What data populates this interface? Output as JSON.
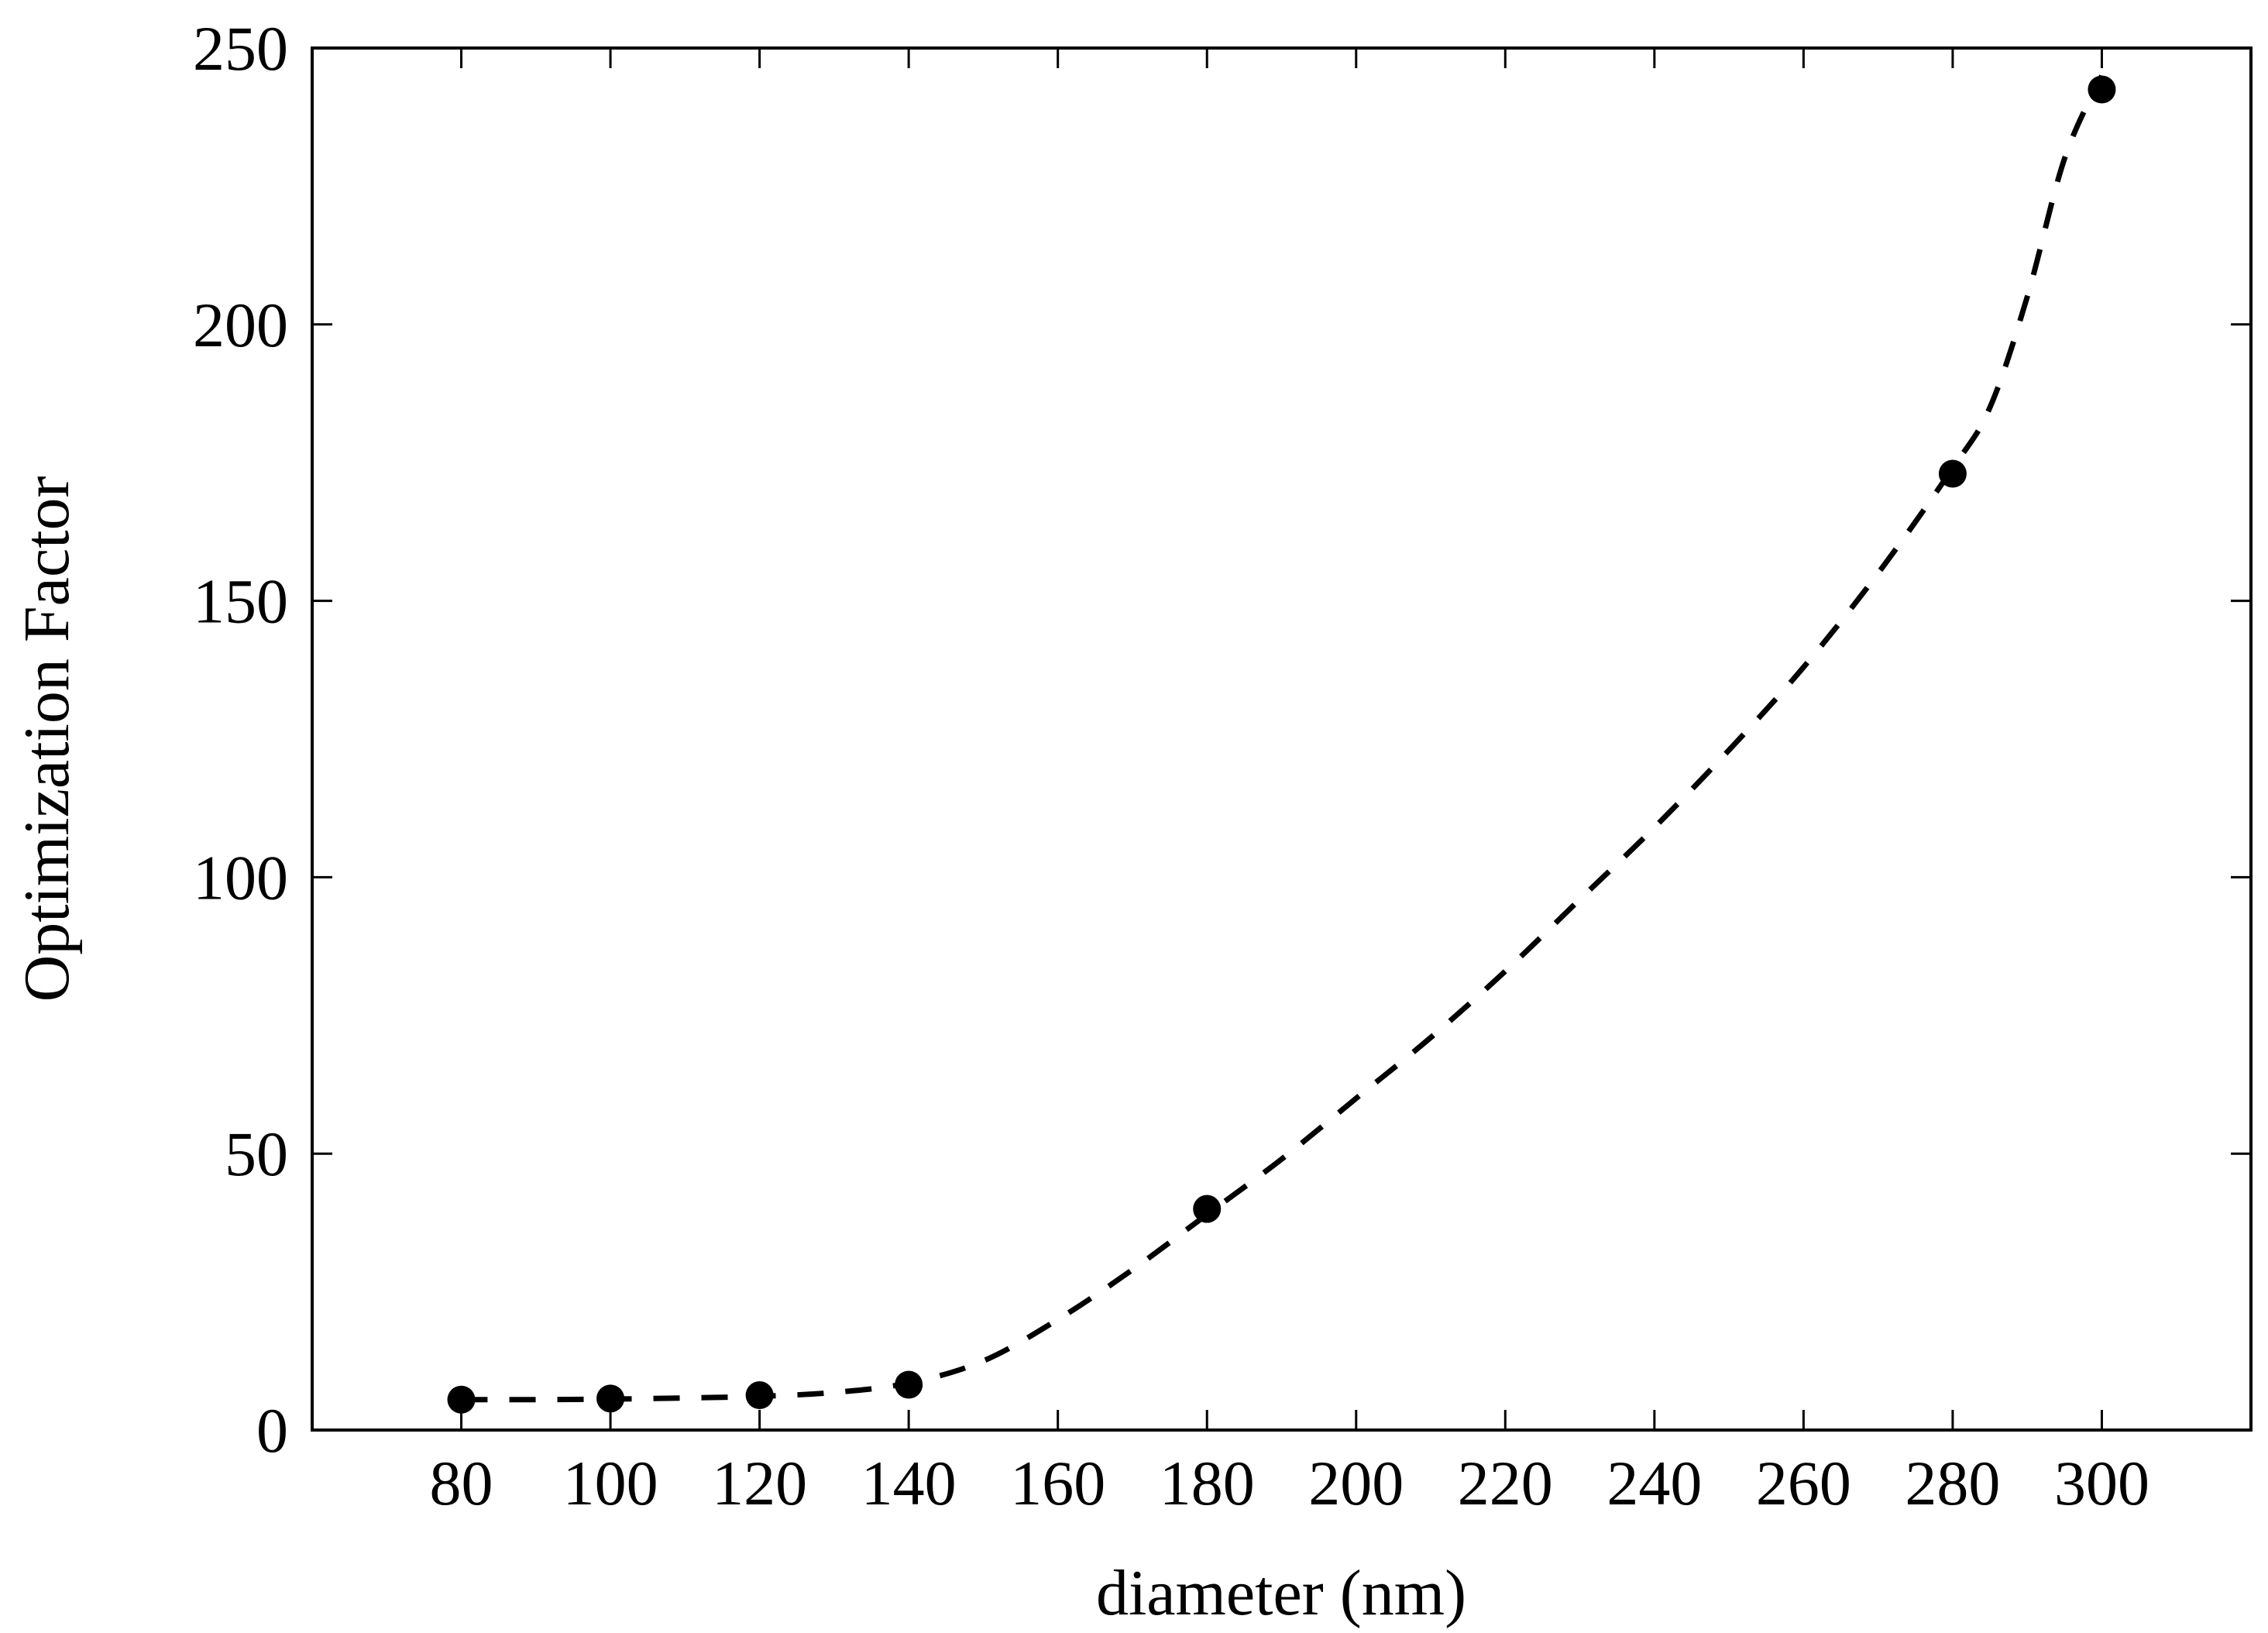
{
  "chart_data": {
    "type": "scatter",
    "title": "",
    "xlabel": "diameter (nm)",
    "ylabel": "Optimization Factor",
    "xlim": [
      60,
      320
    ],
    "ylim": [
      0,
      250
    ],
    "x_ticks": [
      80,
      100,
      120,
      140,
      160,
      180,
      200,
      220,
      240,
      260,
      280,
      300
    ],
    "y_ticks": [
      0,
      50,
      100,
      150,
      200,
      250
    ],
    "grid": false,
    "legend": "none",
    "series": [
      {
        "kind": "points",
        "marker": "filled-circle",
        "color": "#000000",
        "x": [
          80,
          100,
          120,
          140,
          180,
          280,
          300
        ],
        "y": [
          5.5,
          5.7,
          6.3,
          8.2,
          40,
          173,
          242.5
        ]
      },
      {
        "kind": "fit",
        "line_style": "dashed",
        "color": "#000000",
        "x": [
          80,
          90,
          100,
          110,
          120,
          130,
          140,
          150,
          160,
          170,
          180,
          190,
          200,
          210,
          220,
          230,
          240,
          250,
          260,
          270,
          280,
          285,
          290,
          295,
          300
        ],
        "y": [
          5.5,
          5.5,
          5.6,
          5.8,
          6.1,
          6.8,
          8.5,
          12.5,
          20,
          29,
          39,
          49,
          60,
          71,
          83,
          96,
          109,
          123,
          138,
          155,
          174,
          185,
          205,
          230,
          245
        ]
      }
    ]
  }
}
